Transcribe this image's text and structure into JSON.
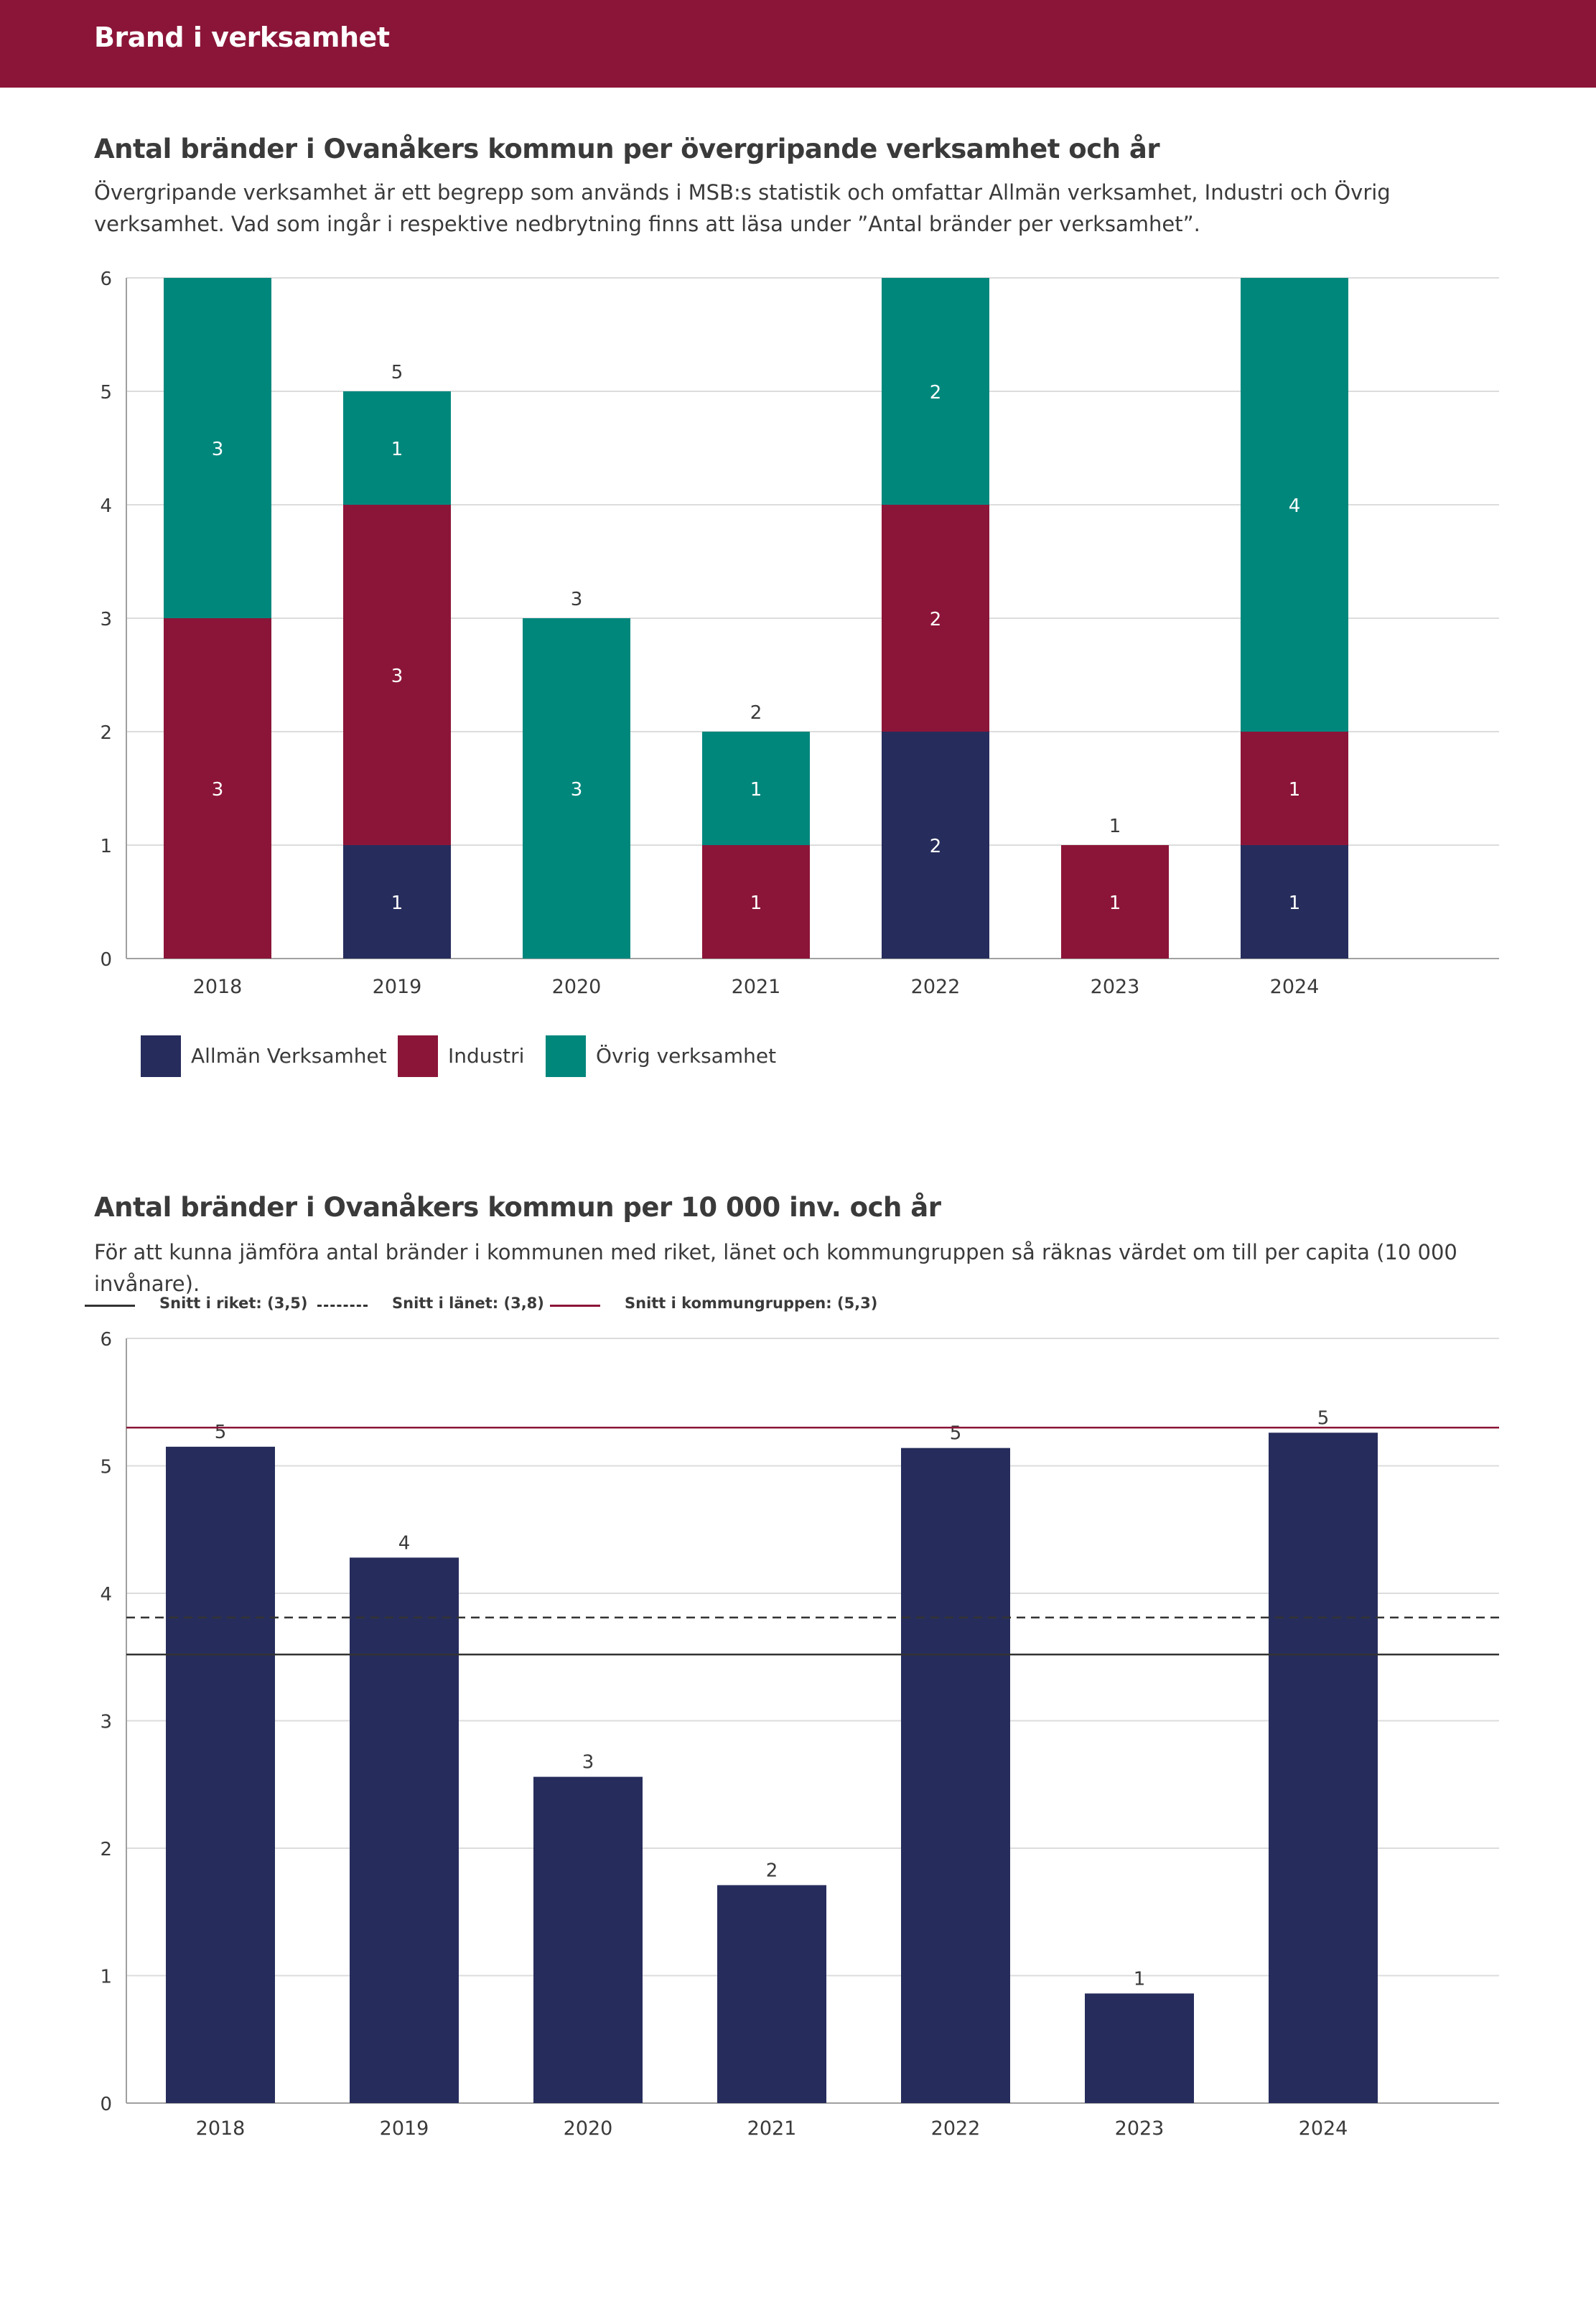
{
  "header": {
    "title": "Brand i verksamhet"
  },
  "section1": {
    "title": "Antal bränder i Ovanåkers kommun per övergripande verksamhet och år",
    "description": "Övergripande verksamhet är ett begrepp som används i MSB:s statistik och omfattar Allmän verksamhet, Industri och Övrig verksamhet. Vad som ingår i respektive nedbrytning finns att läsa under ”Antal bränder per verksamhet”."
  },
  "section2": {
    "title": "Antal bränder i Ovanåkers kommun per 10 000 inv. och år",
    "description": "För att kunna jämföra antal bränder i kommunen med riket, länet och kommungruppen så räknas värdet om till per capita (10 000 invånare)."
  },
  "colors": {
    "header": "#8b1538",
    "allman": "#262d5c",
    "industri": "#8b1538",
    "ovrig": "#00877c",
    "grid": "#d9d9d9",
    "axis": "#a0a0a0"
  },
  "chart_data": [
    {
      "type": "bar",
      "stacked": true,
      "title": "Antal bränder i Ovanåkers kommun per övergripande verksamhet och år",
      "categories": [
        "2018",
        "2019",
        "2020",
        "2021",
        "2022",
        "2023",
        "2024"
      ],
      "series": [
        {
          "name": "Allmän Verksamhet",
          "color": "#262d5c",
          "values": [
            0,
            1,
            0,
            0,
            2,
            0,
            1
          ],
          "labels": [
            "",
            "1",
            "",
            "",
            "2",
            "",
            "1"
          ]
        },
        {
          "name": "Industri",
          "color": "#8b1538",
          "values": [
            3,
            3,
            0,
            1,
            2,
            1,
            1
          ],
          "labels": [
            "3",
            "3",
            "",
            "1",
            "2",
            "1",
            "1"
          ]
        },
        {
          "name": "Övrig verksamhet",
          "color": "#00877c",
          "values": [
            3,
            1,
            3,
            1,
            2,
            0,
            4
          ],
          "labels": [
            "3",
            "1",
            "3",
            "1",
            "2",
            "",
            "4"
          ]
        }
      ],
      "totals": [
        "",
        "5",
        "3",
        "2",
        "",
        "1",
        ""
      ],
      "ylim": [
        0,
        6
      ],
      "yticks": [
        "0",
        "1",
        "2",
        "3",
        "4",
        "5",
        "6"
      ],
      "legend": "bottom-left",
      "grid": true
    },
    {
      "type": "bar",
      "title": "Antal bränder i Ovanåkers kommun per 10 000 inv. och år",
      "categories": [
        "2018",
        "2019",
        "2020",
        "2021",
        "2022",
        "2023",
        "2024"
      ],
      "values": [
        5.15,
        4.28,
        2.56,
        1.71,
        5.14,
        0.86,
        5.26
      ],
      "labels": [
        "5",
        "4",
        "3",
        "2",
        "5",
        "1",
        "5"
      ],
      "color": "#262d5c",
      "ylim": [
        0,
        6
      ],
      "yticks": [
        "0",
        "1",
        "2",
        "3",
        "4",
        "5",
        "6"
      ],
      "reference_lines": [
        {
          "label": "Snitt i riket: (3,5)",
          "value": 3.52,
          "style": "solid",
          "color": "#333333"
        },
        {
          "label": "Snitt i länet: (3,8)",
          "value": 3.81,
          "style": "dashed",
          "color": "#333333"
        },
        {
          "label": "Snitt i kommungruppen: (5,3)",
          "value": 5.3,
          "style": "solid",
          "color": "#8b1538"
        }
      ],
      "legend": "top-left",
      "grid": true
    }
  ]
}
